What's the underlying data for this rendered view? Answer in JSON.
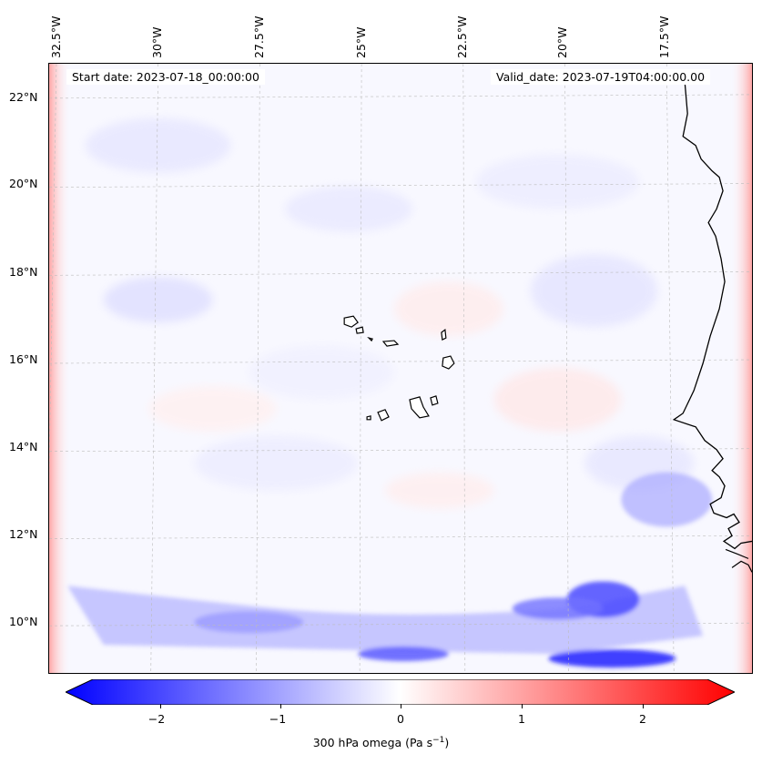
{
  "map": {
    "start_date": "Start date: 2023-07-18_00:00:00",
    "valid_date": "Valid_date: 2023-07-19T04:00:00.00",
    "lon_labels": [
      "32.5°W",
      "30°W",
      "27.5°W",
      "25°W",
      "22.5°W",
      "20°W",
      "17.5°W"
    ],
    "lat_labels": [
      "22°N",
      "20°N",
      "18°N",
      "16°N",
      "14°N",
      "12°N",
      "10°N"
    ],
    "field": "300 hPa omega",
    "region": {
      "lon_range": [
        -33,
        -15.2
      ],
      "lat_range": [
        8.9,
        22.8
      ]
    },
    "colormap": {
      "name": "bwr",
      "low": "#0000ff",
      "mid": "#ffffff",
      "high": "#ff0000",
      "range": [
        -2.7,
        2.7
      ]
    }
  },
  "colorbar": {
    "ticks": [
      "−2",
      "−1",
      "0",
      "1",
      "2"
    ],
    "tick_values": [
      -2,
      -1,
      0,
      1,
      2
    ],
    "label_main": "300 hPa omega (Pa s",
    "label_exp": "−1",
    "label_close": ")"
  }
}
